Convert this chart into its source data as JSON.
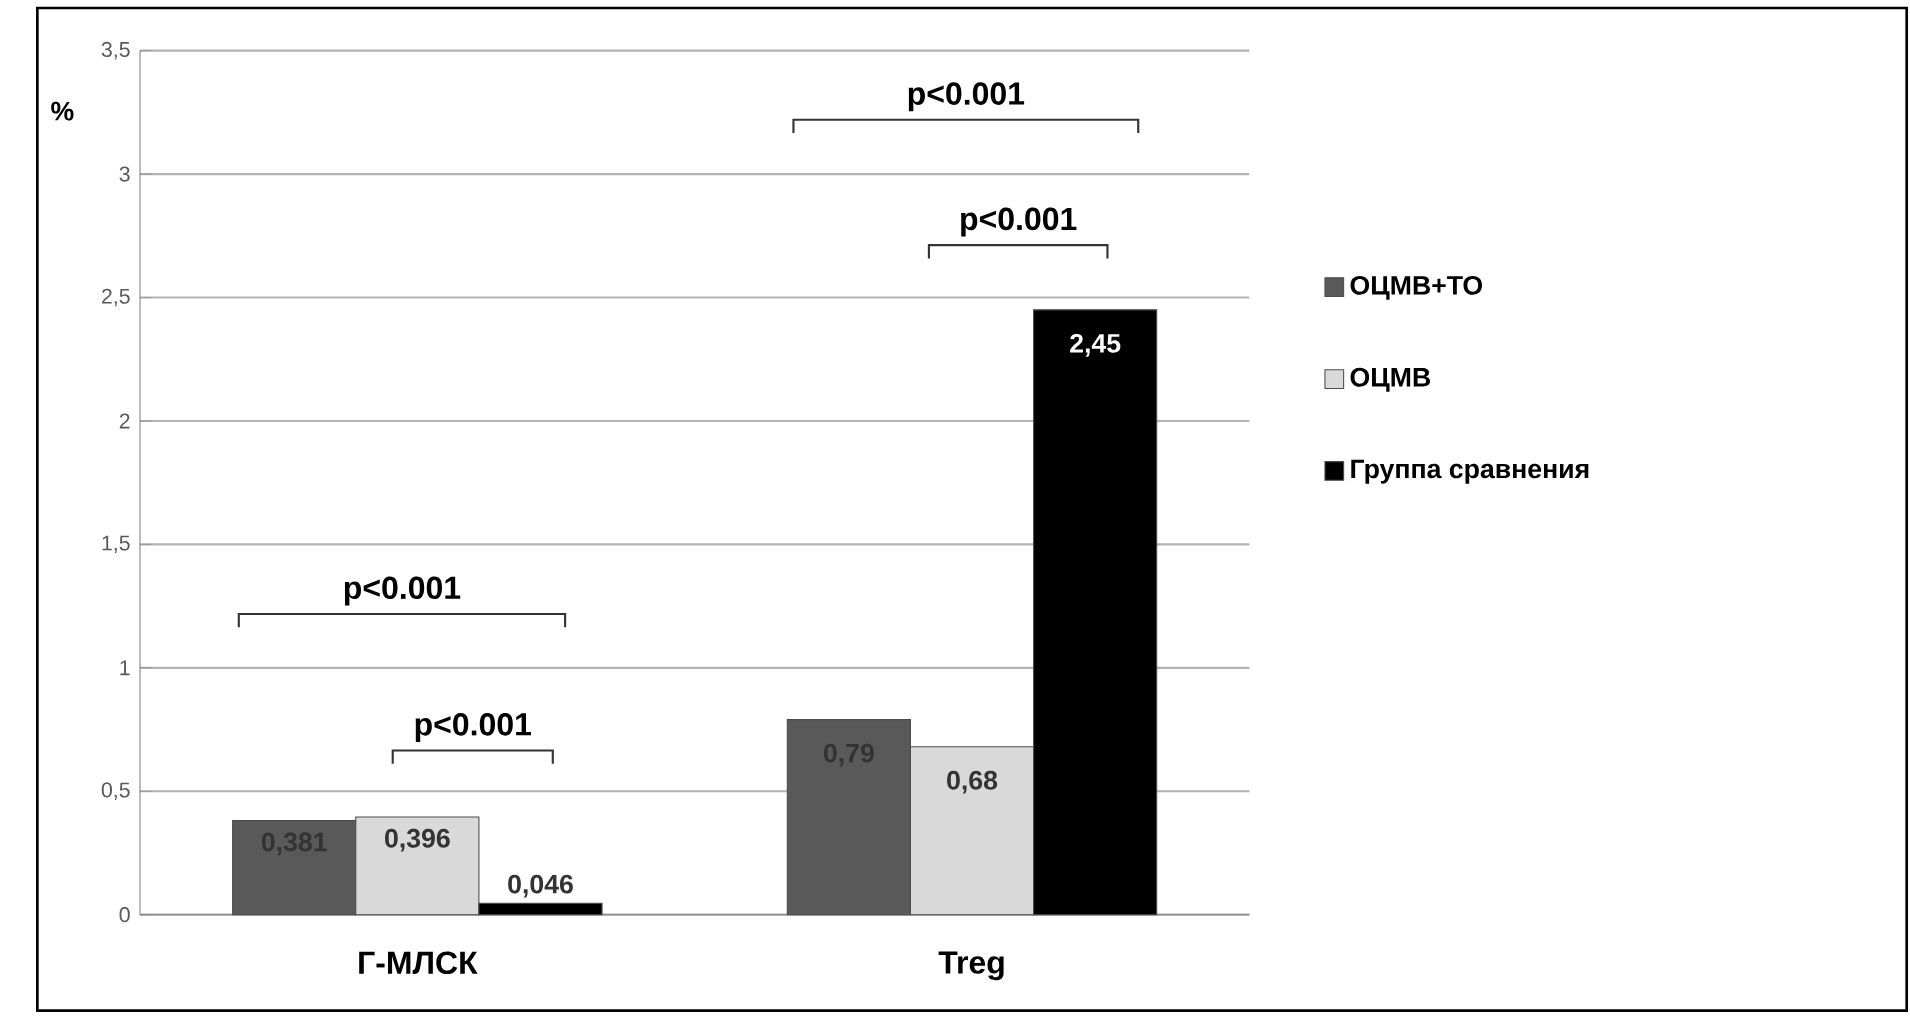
{
  "chart_data": {
    "type": "bar",
    "ylabel": "%",
    "categories": [
      "Г-МЛСК",
      "Treg"
    ],
    "series": [
      {
        "name": "ОЦМВ+ТО",
        "color": "#595959",
        "values": [
          0.381,
          0.79
        ],
        "value_labels": [
          "0,381",
          "0,79"
        ]
      },
      {
        "name": "ОЦМВ",
        "color": "#d9d9d9",
        "values": [
          0.396,
          0.68
        ],
        "value_labels": [
          "0,396",
          "0,68"
        ]
      },
      {
        "name": "Группа сравнения",
        "color": "#000000",
        "values": [
          0.046,
          2.45
        ],
        "value_labels": [
          "0,046",
          "2,45"
        ]
      }
    ],
    "ylim": [
      0,
      3.5
    ],
    "yticks": [
      0,
      {
        "value": 0.5,
        "label": "0,5"
      },
      1,
      {
        "value": 1.5,
        "label": "1,5"
      },
      2,
      {
        "value": 2.5,
        "label": "2,5"
      },
      3,
      {
        "value": 3.5,
        "label": "3,5"
      }
    ],
    "grid": "y",
    "legend": "right",
    "annotations": [
      "p<0.001",
      "p<0.001",
      "p<0.001",
      "p<0.001"
    ]
  }
}
